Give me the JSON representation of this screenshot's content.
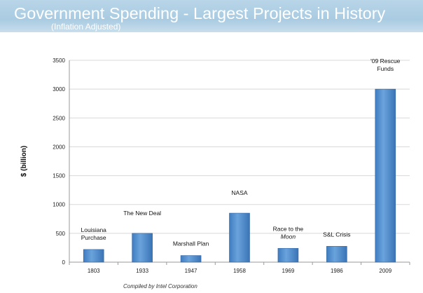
{
  "header": {
    "title": "Government Spending - Largest Projects in History",
    "subtitle": "(Inflation Adjusted)"
  },
  "footnote": "Compiled by Intel Corporation",
  "colors": {
    "banner": "#b9d5e8",
    "bar": "#4a86c8",
    "bar_highlight": "#7db0e3"
  },
  "chart_data": {
    "type": "bar",
    "categories": [
      "1803",
      "1933",
      "1947",
      "1958",
      "1969",
      "1986",
      "2009"
    ],
    "values": [
      220,
      500,
      115,
      850,
      240,
      275,
      3000
    ],
    "ylabel": "$ (billion)",
    "ylim": [
      0,
      3500
    ],
    "yticks": [
      0,
      500,
      1000,
      1500,
      2000,
      2500,
      3000,
      3500
    ],
    "grid": true,
    "annotations": [
      {
        "lines": [
          "Louisiana",
          "Purchase"
        ],
        "italic": [
          false,
          false
        ]
      },
      {
        "lines": [
          "The New Deal"
        ],
        "italic": [
          false
        ]
      },
      {
        "lines": [
          "Marshall Plan"
        ],
        "italic": [
          false
        ]
      },
      {
        "lines": [
          "NASA"
        ],
        "italic": [
          false
        ]
      },
      {
        "lines": [
          "Race to the",
          "Moon"
        ],
        "italic": [
          false,
          true
        ]
      },
      {
        "lines": [
          "S&L Crisis"
        ],
        "italic": [
          false
        ]
      },
      {
        "lines": [
          "'09 Rescue",
          "Funds"
        ],
        "italic": [
          false,
          false
        ]
      }
    ]
  }
}
